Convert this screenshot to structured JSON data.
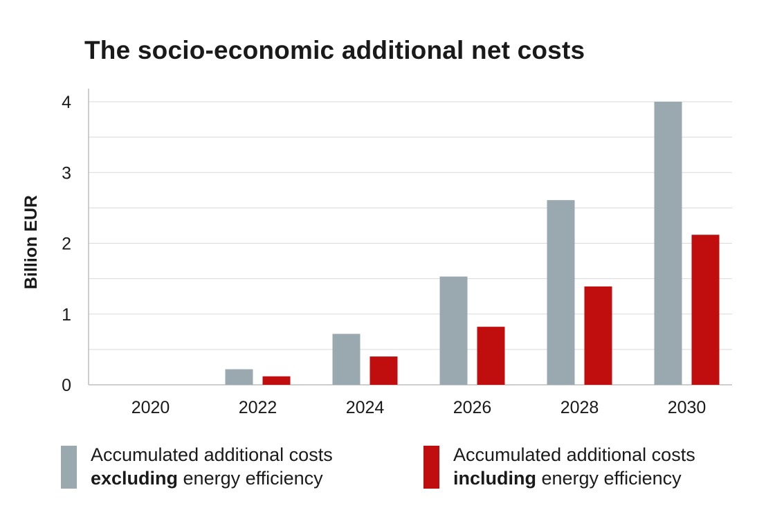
{
  "colors": {
    "excluding": "#9aa8b0",
    "including": "#c00d0d",
    "grid": "#d9d9d9",
    "axis": "#bdbdbd"
  },
  "chart_data": {
    "type": "bar",
    "title": "The socio-economic additional net costs",
    "ylabel": "Billion EUR",
    "xlabel": "",
    "categories": [
      "2020",
      "2022",
      "2024",
      "2026",
      "2028",
      "2030"
    ],
    "ylim": [
      0,
      4
    ],
    "yticks": [
      0,
      1,
      2,
      3,
      4
    ],
    "grid": true,
    "legend_position": "bottom",
    "series": [
      {
        "key": "excluding",
        "legend_line1": "Accumulated additional costs",
        "legend_bold": "excluding",
        "legend_rest": " energy efficiency",
        "values": [
          0,
          0.22,
          0.72,
          1.53,
          2.61,
          4.0
        ]
      },
      {
        "key": "including",
        "legend_line1": "Accumulated additional costs",
        "legend_bold": "including",
        "legend_rest": " energy efficiency",
        "values": [
          0,
          0.12,
          0.4,
          0.82,
          1.39,
          2.12
        ]
      }
    ]
  }
}
